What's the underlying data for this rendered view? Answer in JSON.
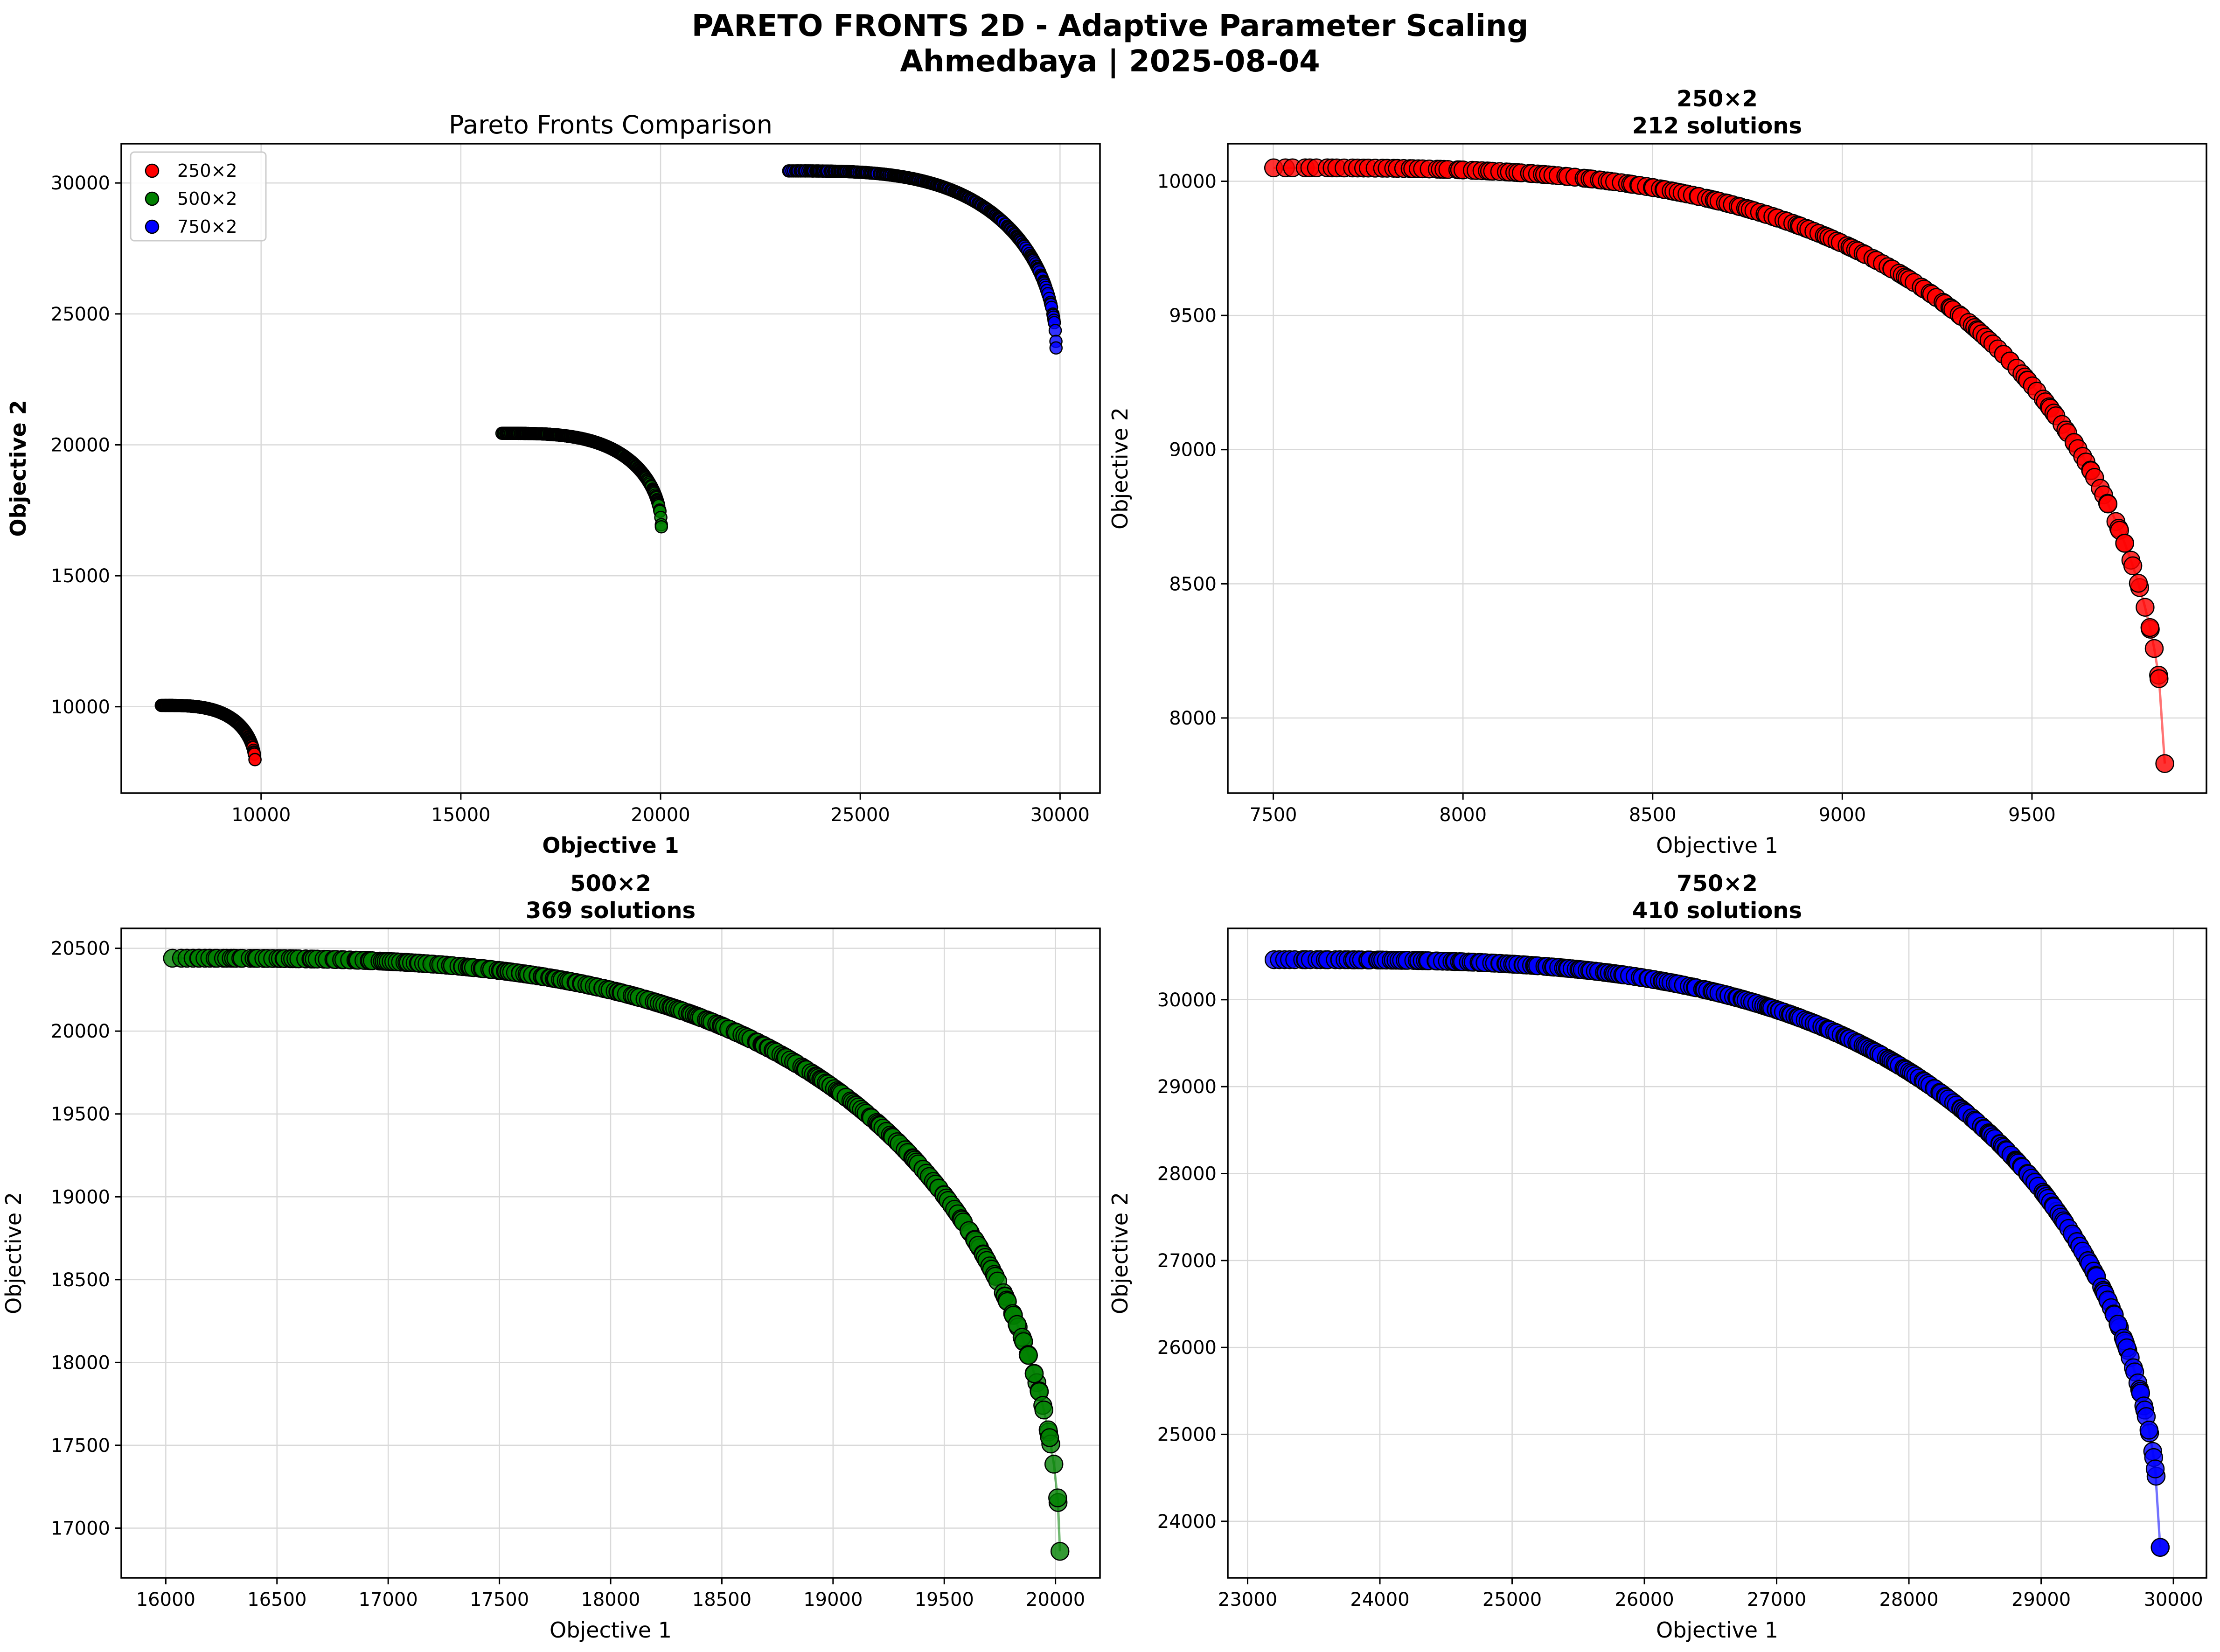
{
  "figure": {
    "title_line1": "PARETO FRONTS 2D - Adaptive Parameter Scaling",
    "title_line2": "Ahmedbaya | 2025-08-04"
  },
  "chart_data": [
    {
      "type": "scatter",
      "title": "Pareto Fronts Comparison",
      "title_lines": [
        "Pareto Fronts Comparison"
      ],
      "xlabel": "Objective 1",
      "ylabel": "Objective 2",
      "labels_bold": true,
      "xlim": [
        6500,
        31000
      ],
      "ylim": [
        6700,
        31500
      ],
      "xticks": [
        10000,
        15000,
        20000,
        25000,
        30000
      ],
      "yticks": [
        10000,
        15000,
        20000,
        25000,
        30000
      ],
      "grid": true,
      "legend": "top-left",
      "connect_line": false,
      "series": [
        {
          "name": "250×2",
          "color": "#ff0000",
          "x_range": [
            7500,
            9850
          ],
          "y_range": [
            7830,
            10050
          ],
          "count": 212
        },
        {
          "name": "500×2",
          "color": "#008000",
          "x_range": [
            16030,
            20020
          ],
          "y_range": [
            16860,
            20440
          ],
          "count": 369
        },
        {
          "name": "750×2",
          "color": "#0000ff",
          "x_range": [
            23200,
            29900
          ],
          "y_range": [
            23700,
            30460
          ],
          "count": 410
        }
      ]
    },
    {
      "type": "scatter",
      "title": "250×2\n212 solutions",
      "title_lines": [
        "250×2",
        "212 solutions"
      ],
      "xlabel": "Objective 1",
      "ylabel": "Objective 2",
      "labels_bold": false,
      "xlim": [
        7380,
        9960
      ],
      "ylim": [
        7720,
        10140
      ],
      "xticks": [
        7500,
        8000,
        8500,
        9000,
        9500
      ],
      "yticks": [
        8000,
        8500,
        9000,
        9500,
        10000
      ],
      "grid": true,
      "connect_line": true,
      "series": [
        {
          "color": "#ff0000",
          "x_range": [
            7500,
            9850
          ],
          "y_range": [
            7830,
            10050
          ],
          "count": 212
        }
      ]
    },
    {
      "type": "scatter",
      "title": "500×2\n369 solutions",
      "title_lines": [
        "500×2",
        "369 solutions"
      ],
      "xlabel": "Objective 1",
      "ylabel": "Objective 2",
      "labels_bold": false,
      "xlim": [
        15800,
        20200
      ],
      "ylim": [
        16700,
        20620
      ],
      "xticks": [
        16000,
        16500,
        17000,
        17500,
        18000,
        18500,
        19000,
        19500,
        20000
      ],
      "yticks": [
        17000,
        17500,
        18000,
        18500,
        19000,
        19500,
        20000,
        20500
      ],
      "grid": true,
      "connect_line": true,
      "series": [
        {
          "color": "#008000",
          "x_range": [
            16030,
            20020
          ],
          "y_range": [
            16860,
            20440
          ],
          "count": 369
        }
      ]
    },
    {
      "type": "scatter",
      "title": "750×2\n410 solutions",
      "title_lines": [
        "750×2",
        "410 solutions"
      ],
      "xlabel": "Objective 1",
      "ylabel": "Objective 2",
      "labels_bold": false,
      "xlim": [
        22850,
        30250
      ],
      "ylim": [
        23350,
        30820
      ],
      "xticks": [
        23000,
        24000,
        25000,
        26000,
        27000,
        28000,
        29000,
        30000
      ],
      "yticks": [
        24000,
        25000,
        26000,
        27000,
        28000,
        29000,
        30000
      ],
      "grid": true,
      "connect_line": true,
      "series": [
        {
          "color": "#0000ff",
          "x_range": [
            23200,
            29900
          ],
          "y_range": [
            23700,
            30460
          ],
          "count": 410
        }
      ]
    }
  ]
}
